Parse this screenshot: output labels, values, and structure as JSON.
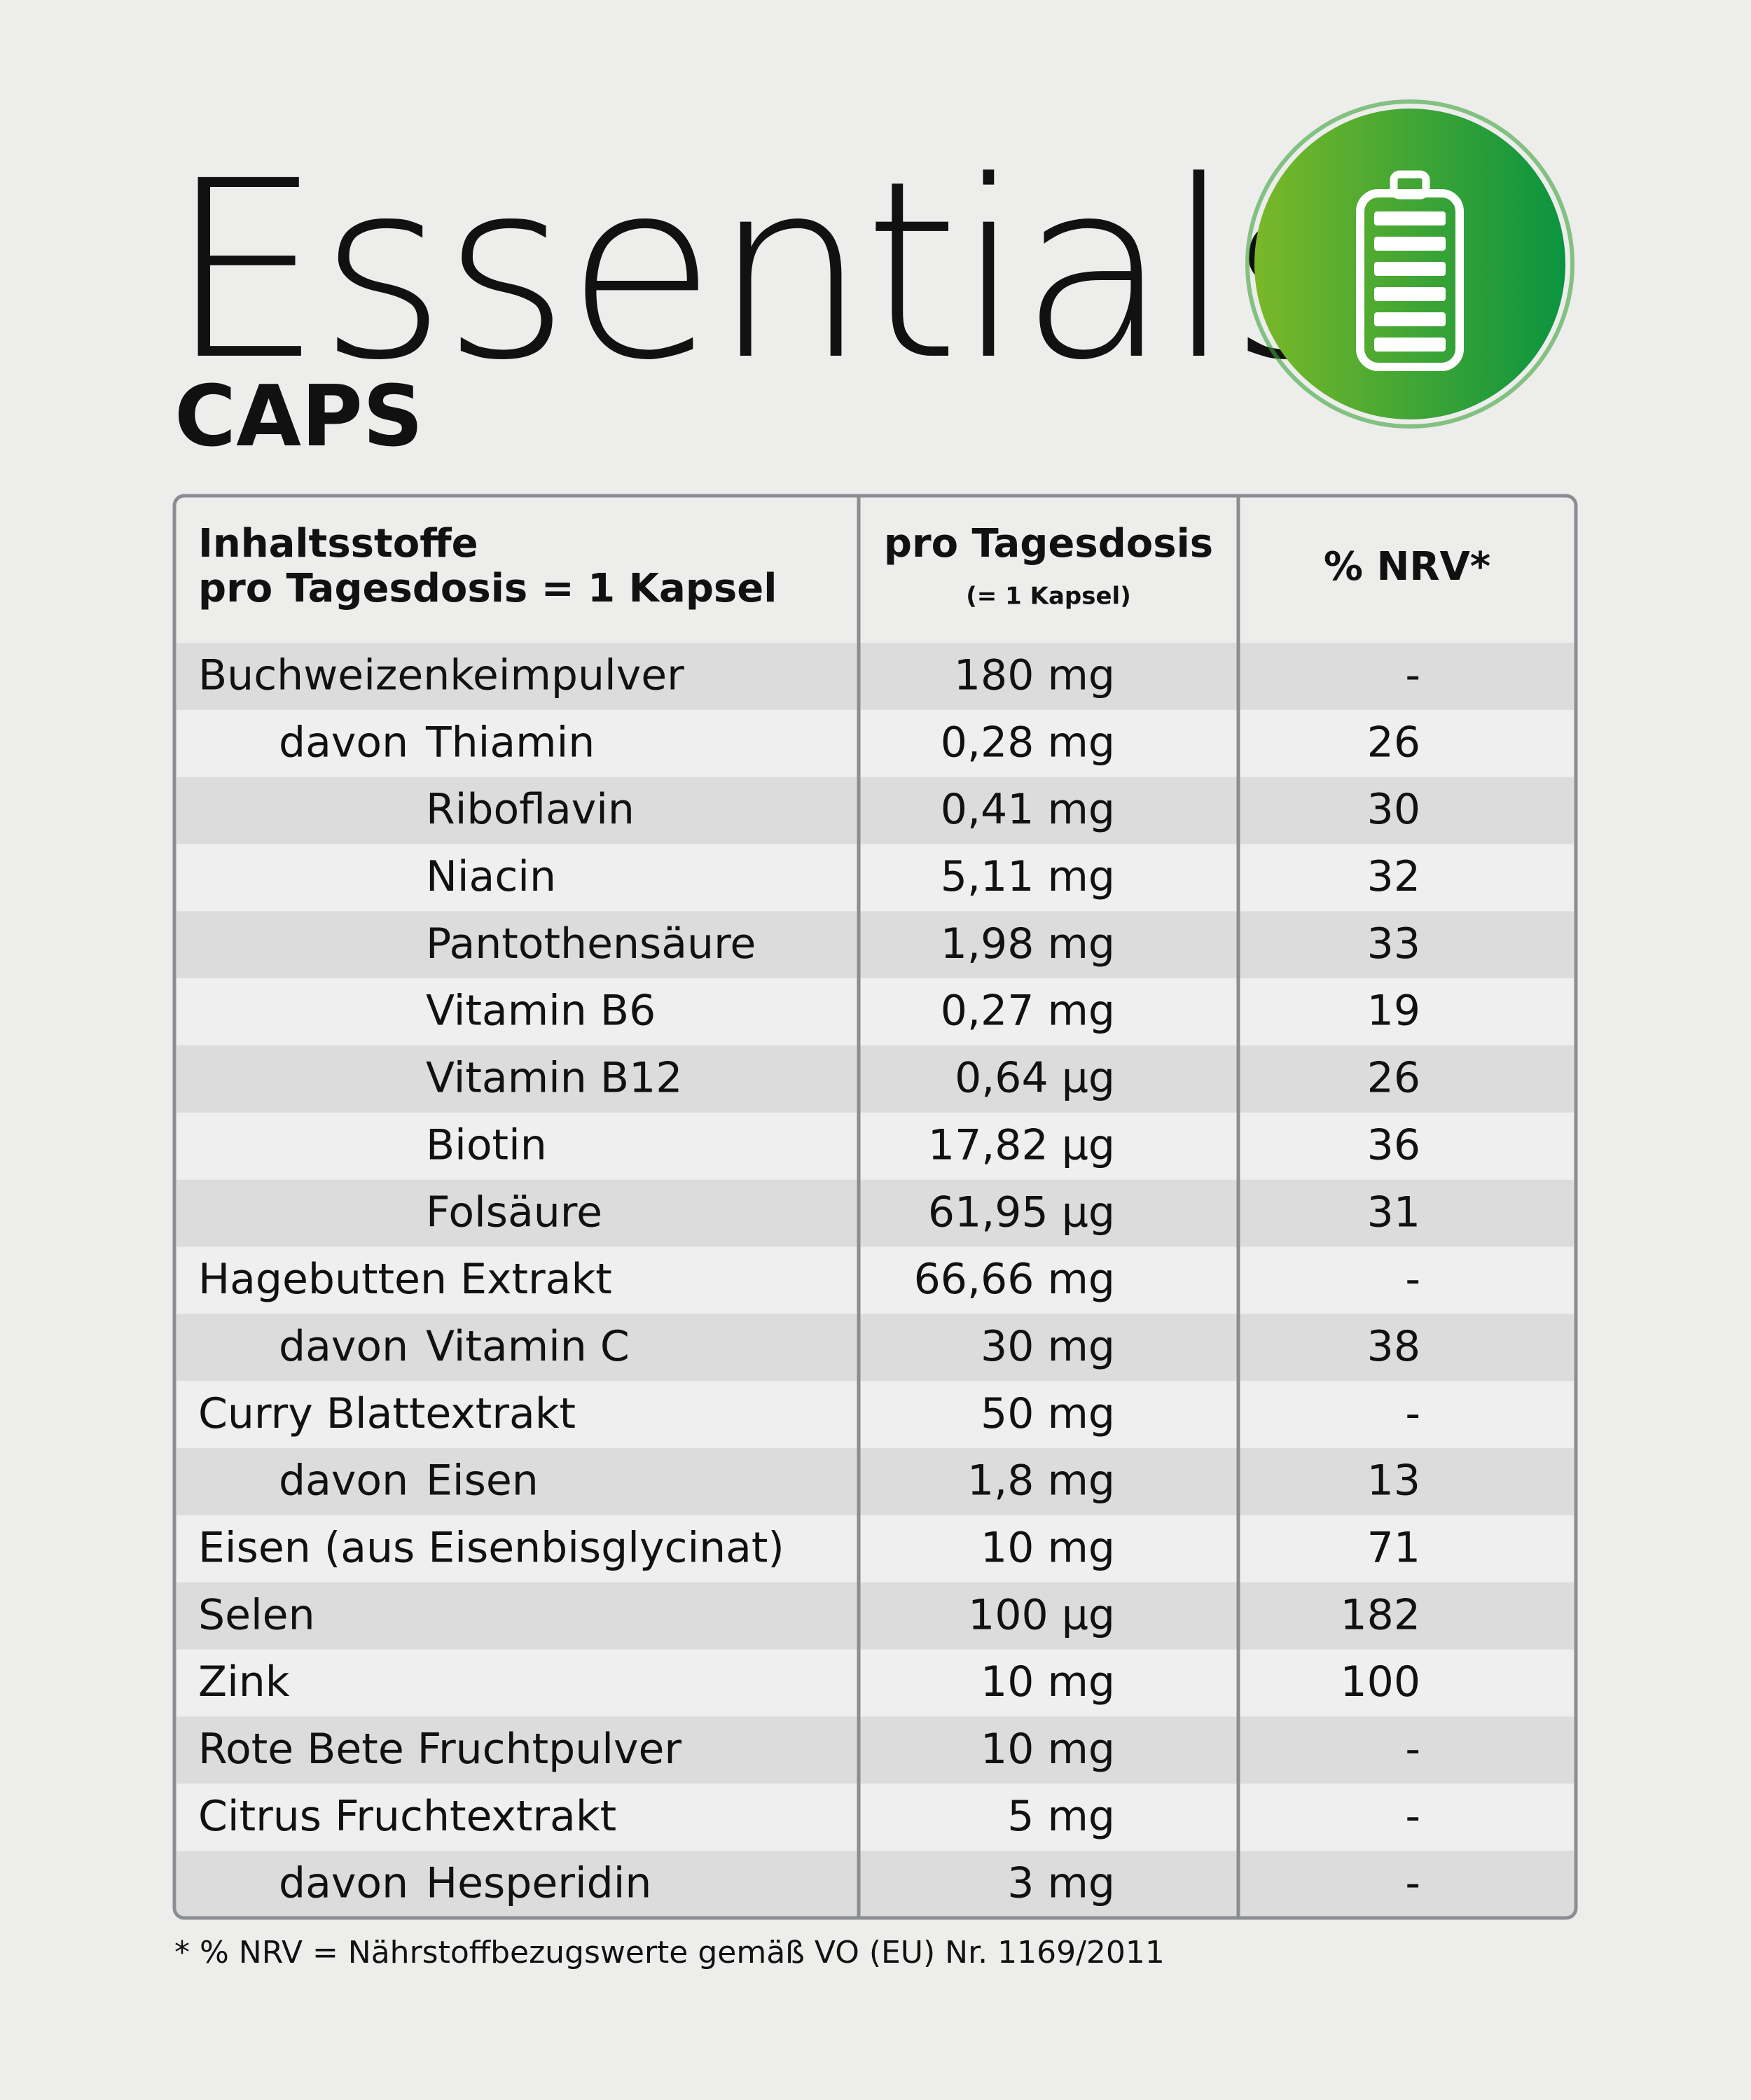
{
  "header": {
    "title": "Essentials",
    "subtitle": "CAPS"
  },
  "table": {
    "columns": [
      {
        "lines": [
          "Inhaltsstoffe",
          "pro Tagesdosis = 1 Kapsel"
        ]
      },
      {
        "lines": [
          "pro Tagesdosis"
        ],
        "note": "(= 1 Kapsel)"
      },
      {
        "lines": [
          "% NRV*"
        ]
      }
    ],
    "rows": [
      {
        "name": "Buchweizenkeimpulver",
        "amount": "180 mg",
        "nrv": "-",
        "components": {
          "label": "davon",
          "items": [
            {
              "name": "Thiamin",
              "amount": "0,28 mg",
              "nrv": 26
            },
            {
              "name": "Riboflavin",
              "amount": "0,41 mg",
              "nrv": 30
            },
            {
              "name": "Niacin",
              "amount": "5,11 mg",
              "nrv": 32
            },
            {
              "name": "Pantothensäure",
              "amount": "1,98 mg",
              "nrv": 33
            },
            {
              "name": "Vitamin B6",
              "amount": "0,27 mg",
              "nrv": 19
            },
            {
              "name": "Vitamin B12",
              "amount": "0,64 µg",
              "nrv": 26
            },
            {
              "name": "Biotin",
              "amount": "17,82 µg",
              "nrv": 36
            },
            {
              "name": "Folsäure",
              "amount": "61,95 µg",
              "nrv": 31
            }
          ]
        }
      },
      {
        "name": "Hagebutten Extrakt",
        "amount": "66,66 mg",
        "nrv": "-",
        "components": {
          "label": "davon",
          "items": [
            {
              "name": "Vitamin C",
              "amount": "30 mg",
              "nrv": 38
            }
          ]
        }
      },
      {
        "name": "Curry Blattextrakt",
        "amount": "50 mg",
        "nrv": "-",
        "components": {
          "label": "davon",
          "items": [
            {
              "name": "Eisen",
              "amount": "1,8 mg",
              "nrv": 13
            }
          ]
        }
      },
      {
        "name": "Eisen (aus Eisenbisglycinat)",
        "amount": "10 mg",
        "nrv": 71
      },
      {
        "name": "Selen",
        "amount": "100 µg",
        "nrv": 182
      },
      {
        "name": "Zink",
        "amount": "10 mg",
        "nrv": 100
      },
      {
        "name": "Rote Bete Fruchtpulver",
        "amount": "10 mg",
        "nrv": "-"
      },
      {
        "name": "Citrus Fruchtextrakt",
        "amount": "5 mg",
        "nrv": "-",
        "components": {
          "label": "davon",
          "items": [
            {
              "name": "Hesperidin",
              "amount": "3 mg",
              "nrv": "-"
            }
          ]
        }
      }
    ]
  },
  "footnote": "* % NRV = Nährstoffbezugswerte gemäß VO (EU) Nr. 1169/2011"
}
